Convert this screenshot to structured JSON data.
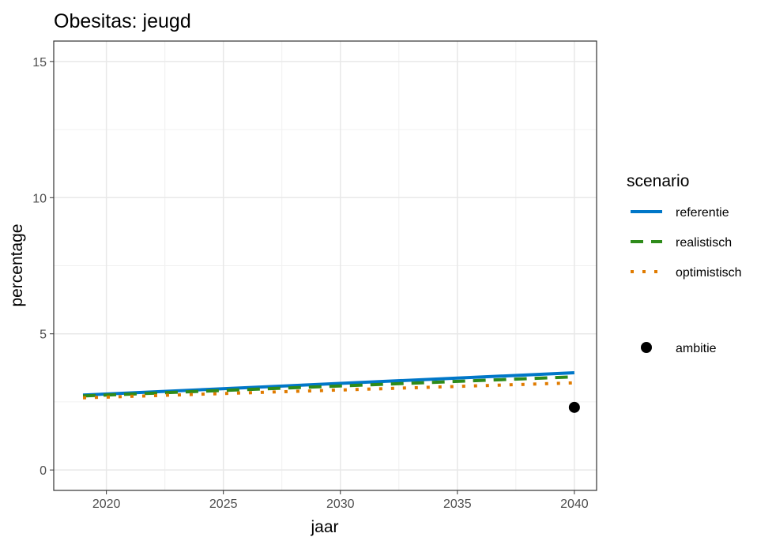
{
  "chart_data": {
    "type": "line",
    "title": "Obesitas: jeugd",
    "xlabel": "jaar",
    "ylabel": "percentage",
    "xlim": [
      2017.75,
      2040.95
    ],
    "ylim": [
      -0.75,
      15.75
    ],
    "xticks": [
      2020,
      2025,
      2030,
      2035,
      2040
    ],
    "yticks": [
      0,
      5,
      10,
      15
    ],
    "grid": true,
    "legend_placement": "right",
    "legend_title": "scenario",
    "series": [
      {
        "name": "referentie",
        "color": "#0077c8",
        "style": "solid",
        "x": [
          2019,
          2040
        ],
        "y": [
          2.75,
          3.57
        ]
      },
      {
        "name": "realistisch",
        "color": "#2e8b1a",
        "style": "dashed",
        "x": [
          2019,
          2040
        ],
        "y": [
          2.72,
          3.42
        ]
      },
      {
        "name": "optimistisch",
        "color": "#e07b00",
        "style": "dotted",
        "x": [
          2019,
          2040
        ],
        "y": [
          2.65,
          3.2
        ]
      }
    ],
    "points": [
      {
        "name": "ambitie",
        "color": "#000000",
        "x": 2040,
        "y": 2.3
      }
    ]
  }
}
